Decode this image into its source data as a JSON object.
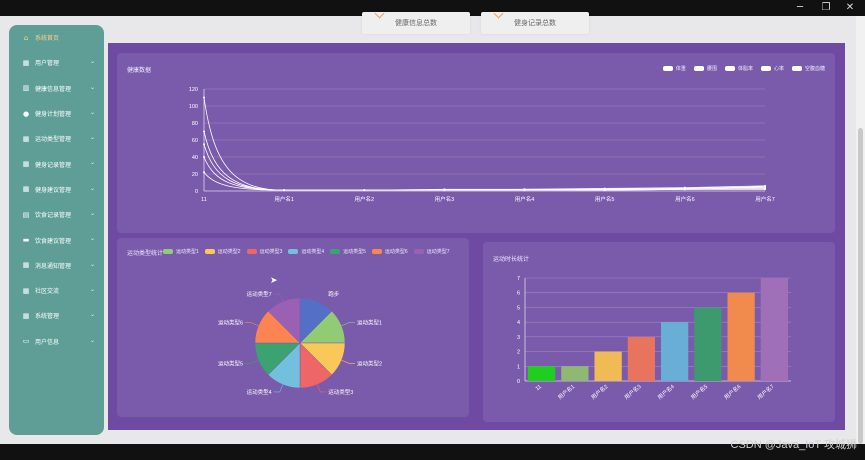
{
  "window": {
    "minimize_glyph": "─",
    "maximize_glyph": "❐",
    "close_glyph": "✕"
  },
  "sidebar": {
    "items": [
      {
        "label": "系统首页",
        "icon": "home-icon",
        "glyph": "⌂",
        "active": true
      },
      {
        "label": "用户管理",
        "icon": "grid-icon",
        "glyph": "▦"
      },
      {
        "label": "健康信息管理",
        "icon": "bar-chart-icon",
        "glyph": "▥"
      },
      {
        "label": "健身计划管理",
        "icon": "user-icon",
        "glyph": "●"
      },
      {
        "label": "运动类型管理",
        "icon": "grid-icon",
        "glyph": "▦"
      },
      {
        "label": "健身记录管理",
        "icon": "grid-icon",
        "glyph": "▦"
      },
      {
        "label": "健身建议管理",
        "icon": "grid-icon",
        "glyph": "▦"
      },
      {
        "label": "饮食记录管理",
        "icon": "clipboard-icon",
        "glyph": "▤"
      },
      {
        "label": "饮食建议管理",
        "icon": "monitor-icon",
        "glyph": "▬"
      },
      {
        "label": "消息通知管理",
        "icon": "grid-icon",
        "glyph": "▦"
      },
      {
        "label": "社区交流",
        "icon": "grid-icon",
        "glyph": "▦"
      },
      {
        "label": "系统管理",
        "icon": "grid-icon",
        "glyph": "▦"
      },
      {
        "label": "用户信息",
        "icon": "id-card-icon",
        "glyph": "▭"
      }
    ],
    "chevron": "⌄"
  },
  "top_cards": [
    {
      "label": "健康信息总数"
    },
    {
      "label": "健身记录总数"
    }
  ],
  "health_panel": {
    "title": "健康数据",
    "legend": [
      "体重",
      "腰围",
      "体脂率",
      "心率",
      "空腹血糖"
    ]
  },
  "pie_panel": {
    "title": "运动类型统计"
  },
  "bar_panel": {
    "title": "运动时长统计"
  },
  "watermark": "CSDN @Java_IoT 攻城狮",
  "colors": {
    "sidebar_bg": "#5e9e96",
    "main_bg": "#6e4aa2",
    "panel_bg": "#7a5aab",
    "active_menu": "#f6d48b"
  },
  "chart_data": [
    {
      "type": "line",
      "x": [
        "11",
        "用户名1",
        "用户名2",
        "用户名3",
        "用户名4",
        "用户名5",
        "用户名6",
        "用户名7"
      ],
      "ylim": [
        0,
        120
      ],
      "yticks": [
        0,
        20,
        40,
        60,
        80,
        100,
        120
      ],
      "series": [
        {
          "name": "体重",
          "values": [
            110,
            1,
            1,
            2,
            2,
            3,
            4,
            6
          ]
        },
        {
          "name": "腰围",
          "values": [
            70,
            1,
            1,
            1,
            2,
            2,
            3,
            5
          ]
        },
        {
          "name": "体脂率",
          "values": [
            55,
            1,
            1,
            1,
            1,
            2,
            3,
            4
          ]
        },
        {
          "name": "心率",
          "values": [
            40,
            1,
            1,
            1,
            1,
            1,
            2,
            3
          ]
        },
        {
          "name": "空腹血糖",
          "values": [
            22,
            1,
            1,
            1,
            1,
            1,
            2,
            2
          ]
        }
      ],
      "grid": true,
      "legend_position": "top-right"
    },
    {
      "type": "pie",
      "labels": [
        "跑步",
        "运动类型1",
        "运动类型2",
        "运动类型3",
        "运动类型4",
        "运动类型5",
        "运动类型6",
        "运动类型7"
      ],
      "values": [
        1,
        1,
        1,
        1,
        1,
        1,
        1,
        1
      ],
      "colors": [
        "#5470c6",
        "#91cc75",
        "#fac858",
        "#ee6666",
        "#73c0de",
        "#3ba272",
        "#fc8452",
        "#9a60b4"
      ],
      "legend": [
        "运动类型1",
        "运动类型2",
        "运动类型3",
        "运动类型4",
        "运动类型5",
        "运动类型6",
        "运动类型7"
      ],
      "legend_position": "top"
    },
    {
      "type": "bar",
      "categories": [
        "11",
        "用户名1",
        "用户名2",
        "用户名3",
        "用户名4",
        "用户名5",
        "用户名6",
        "用户名7"
      ],
      "values": [
        1,
        1,
        2,
        3,
        4,
        5,
        6,
        7
      ],
      "colors": [
        "#1fce1f",
        "#8fb873",
        "#f0bb55",
        "#e8745e",
        "#69aed4",
        "#3d9a6e",
        "#f08a4d",
        "#9f70b8"
      ],
      "ylim": [
        0,
        7
      ],
      "yticks": [
        0,
        1,
        2,
        3,
        4,
        5,
        6,
        7
      ],
      "grid": true
    }
  ]
}
